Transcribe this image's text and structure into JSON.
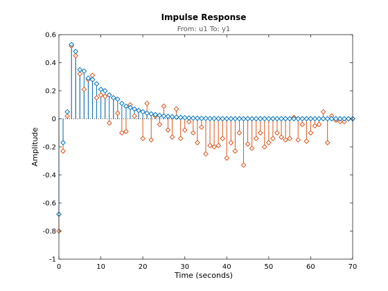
{
  "chart_data": {
    "type": "stem",
    "title": "Impulse Response",
    "subtitle": "From: u1  To: y1",
    "xlabel": "Time (seconds)",
    "ylabel": "Amplitude",
    "xlim": [
      0,
      70
    ],
    "ylim": [
      -1,
      0.6
    ],
    "xticks": [
      "0",
      "10",
      "20",
      "30",
      "40",
      "50",
      "60",
      "70"
    ],
    "yticks": [
      "-1",
      "-0.8",
      "-0.6",
      "-0.4",
      "-0.2",
      "0",
      "0.2",
      "0.4",
      "0.6"
    ],
    "xtick_values": [
      0,
      10,
      20,
      30,
      40,
      50,
      60,
      70
    ],
    "ytick_values": [
      -1,
      -0.8,
      -0.6,
      -0.4,
      -0.2,
      0,
      0.2,
      0.4,
      0.6
    ],
    "grid": false,
    "series": [
      {
        "color": "#0072bd",
        "marker": "diamond",
        "x": [
          0,
          1,
          2,
          3,
          4,
          5,
          6,
          7,
          8,
          9,
          10,
          11,
          12,
          13,
          14,
          15,
          16,
          17,
          18,
          19,
          20,
          21,
          22,
          23,
          24,
          25,
          26,
          27,
          28,
          29,
          30,
          31,
          32,
          33,
          34,
          35,
          36,
          37,
          38,
          39,
          40,
          41,
          42,
          43,
          44,
          45,
          46,
          47,
          48,
          49,
          50,
          51,
          52,
          53,
          54,
          55,
          56,
          57,
          58,
          59,
          60,
          61,
          62,
          63,
          64,
          65,
          66,
          67,
          68,
          69,
          70
        ],
        "values": [
          -0.68,
          -0.17,
          0.05,
          0.53,
          0.48,
          0.35,
          0.34,
          0.29,
          0.28,
          0.25,
          0.21,
          0.2,
          0.17,
          0.15,
          0.14,
          0.11,
          0.09,
          0.08,
          0.07,
          0.06,
          0.05,
          0.04,
          0.035,
          0.03,
          0.025,
          0.02,
          0.018,
          0.015,
          0.012,
          0.01,
          0.008,
          0.006,
          0.005,
          0.004,
          0.003,
          0.003,
          0.002,
          0.002,
          0.002,
          0.001,
          0.001,
          0.001,
          0.001,
          0.001,
          0.001,
          0.001,
          0.001,
          0.001,
          0.001,
          0.001,
          0.001,
          0.001,
          0.001,
          0.001,
          0.001,
          0.001,
          0.001,
          0.001,
          0.001,
          0.001,
          0.001,
          0.001,
          0.001,
          0.001,
          0.001,
          0.001,
          0.001,
          0.001,
          0.001,
          0.001,
          0.001
        ]
      },
      {
        "color": "#d95319",
        "marker": "diamond",
        "x": [
          0,
          1,
          2,
          3,
          4,
          5,
          6,
          7,
          8,
          9,
          10,
          11,
          12,
          13,
          14,
          15,
          16,
          17,
          18,
          19,
          20,
          21,
          22,
          23,
          24,
          25,
          26,
          27,
          28,
          29,
          30,
          31,
          32,
          33,
          34,
          35,
          36,
          37,
          38,
          39,
          40,
          41,
          42,
          43,
          44,
          45,
          46,
          47,
          48,
          49,
          50,
          51,
          52,
          53,
          54,
          55,
          56,
          57,
          58,
          59,
          60,
          61,
          62,
          63,
          64,
          65,
          66,
          67,
          68,
          69,
          70
        ],
        "values": [
          -0.8,
          -0.23,
          0.02,
          0.52,
          0.45,
          0.32,
          0.21,
          0.28,
          0.31,
          0.15,
          0.17,
          0.16,
          -0.03,
          0.15,
          0.04,
          -0.1,
          -0.09,
          0.1,
          0.02,
          0.06,
          -0.14,
          0.11,
          -0.15,
          0.02,
          -0.04,
          0.09,
          -0.08,
          -0.13,
          0.07,
          -0.14,
          -0.08,
          -0.02,
          -0.1,
          -0.17,
          -0.06,
          -0.25,
          -0.19,
          -0.2,
          -0.19,
          -0.14,
          -0.28,
          -0.17,
          -0.23,
          -0.1,
          -0.33,
          -0.18,
          -0.21,
          -0.14,
          -0.1,
          -0.2,
          -0.17,
          -0.14,
          -0.1,
          -0.13,
          -0.15,
          -0.14,
          0.01,
          -0.15,
          -0.04,
          -0.16,
          -0.1,
          -0.05,
          -0.04,
          0.05,
          -0.17,
          0.02,
          -0.01,
          -0.02,
          -0.02,
          0.0,
          0.0
        ]
      }
    ]
  }
}
